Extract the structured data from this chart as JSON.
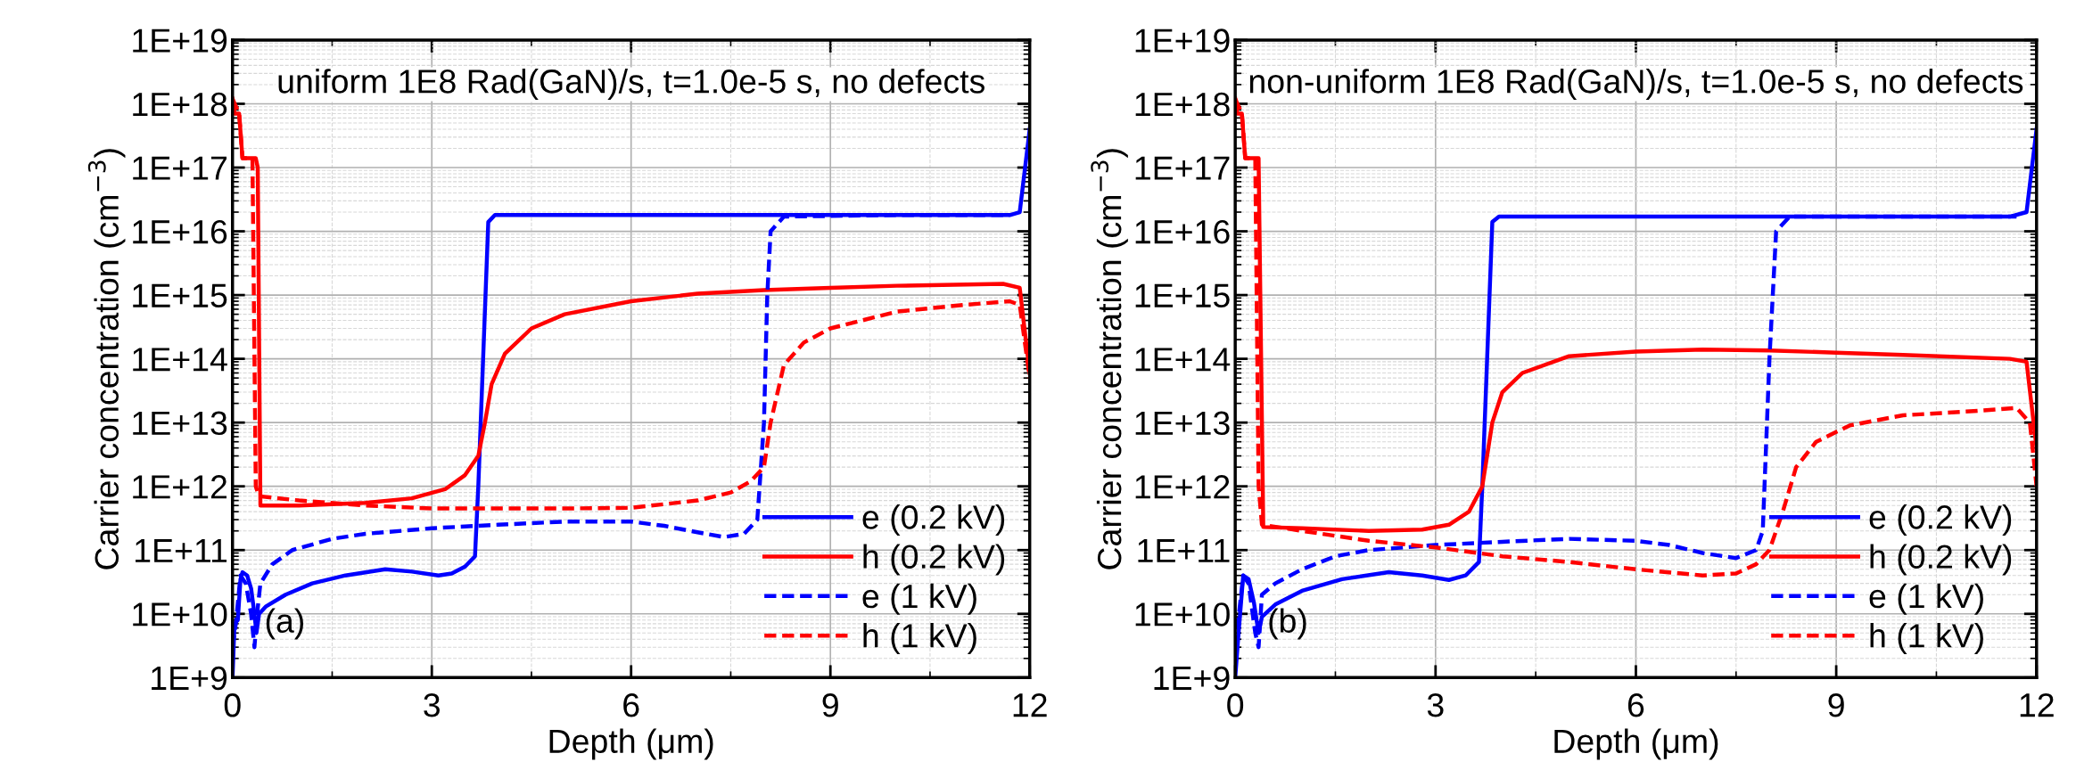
{
  "chart_data": [
    {
      "type": "line",
      "xlabel": "Depth (μm)",
      "ylabel": "Carrier concentration (cm$^{−3}$)",
      "log": "y",
      "grid": true,
      "legend": "bottom right",
      "xlim": [
        0,
        12
      ],
      "xticks": [
        0,
        3,
        6,
        9,
        12
      ],
      "ylim": [
        1000000000.0,
        1e+19
      ],
      "yticks": [
        {
          "value": 1000000000.0,
          "label": "1E+9"
        },
        {
          "value": 10000000000.0,
          "label": "1E+10"
        },
        {
          "value": 100000000000.0,
          "label": "1E+11"
        },
        {
          "value": 1000000000000.0,
          "label": "1E+12"
        },
        {
          "value": 10000000000000.0,
          "label": "1E+13"
        },
        {
          "value": 100000000000000.0,
          "label": "1E+14"
        },
        {
          "value": 1000000000000000.0,
          "label": "1E+15"
        },
        {
          "value": 1e+16,
          "label": "1E+16"
        },
        {
          "value": 1e+17,
          "label": "1E+17"
        },
        {
          "value": 1e+18,
          "label": "1E+18"
        },
        {
          "value": 1e+19,
          "label": "1E+19"
        }
      ],
      "annotations": [
        "uniform 1E8 Rad(GaN)/s, t=1.0e-5 s, no defects",
        "(a)"
      ],
      "series": [
        {
          "name": "e (0.2 kV)",
          "color": "#0000ff",
          "line_style": "solid",
          "x": [
            0,
            0.03,
            0.08,
            0.12,
            0.15,
            0.22,
            0.28,
            0.33,
            0.36,
            0.4,
            0.5,
            0.8,
            1.2,
            1.7,
            2.3,
            2.7,
            3.1,
            3.3,
            3.5,
            3.65,
            3.7,
            3.85,
            3.95,
            6,
            9,
            11.7,
            11.85,
            12
          ],
          "values": [
            1000000000.0,
            7000000000.0,
            8000000000.0,
            35000000000.0,
            45000000000.0,
            40000000000.0,
            25000000000.0,
            10000000000.0,
            5000000000.0,
            10000000000.0,
            13000000000.0,
            20000000000.0,
            30000000000.0,
            40000000000.0,
            50000000000.0,
            46000000000.0,
            40000000000.0,
            43000000000.0,
            55000000000.0,
            80000000000.0,
            1000000000000.0,
            1.4e+16,
            1.8e+16,
            1.8e+16,
            1.8e+16,
            1.8e+16,
            2e+16,
            4e+17
          ]
        },
        {
          "name": "h (0.2 kV)",
          "color": "#ff0000",
          "line_style": "solid",
          "x": [
            0,
            0.03,
            0.1,
            0.15,
            0.35,
            0.38,
            0.42,
            1,
            2,
            2.7,
            3.2,
            3.5,
            3.7,
            3.8,
            3.9,
            4.1,
            4.5,
            5,
            6,
            7,
            8,
            9,
            10,
            11.6,
            11.85,
            12
          ],
          "values": [
            1.2e+18,
            7e+17,
            7e+17,
            1.4e+17,
            1.4e+17,
            1e+17,
            500000000000.0,
            500000000000.0,
            550000000000.0,
            650000000000.0,
            900000000000.0,
            1500000000000.0,
            3000000000000.0,
            10000000000000.0,
            40000000000000.0,
            120000000000000.0,
            300000000000000.0,
            500000000000000.0,
            800000000000000.0,
            1050000000000000.0,
            1200000000000000.0,
            1300000000000000.0,
            1400000000000000.0,
            1500000000000000.0,
            1300000000000000.0,
            60000000000000.0
          ]
        },
        {
          "name": "e (1 kV)",
          "color": "#0000ff",
          "line_style": "dashed",
          "x": [
            0,
            0.05,
            0.12,
            0.2,
            0.28,
            0.33,
            0.37,
            0.42,
            0.6,
            0.9,
            1.5,
            2,
            3,
            4,
            5,
            6,
            6.5,
            7,
            7.4,
            7.7,
            7.9,
            8,
            8.05,
            8.1,
            8.3,
            10,
            11.7
          ],
          "values": [
            3000000000.0,
            7000000000.0,
            40000000000.0,
            30000000000.0,
            10000000000.0,
            3000000000.0,
            10000000000.0,
            30000000000.0,
            60000000000.0,
            100000000000.0,
            150000000000.0,
            180000000000.0,
            220000000000.0,
            250000000000.0,
            280000000000.0,
            280000000000.0,
            240000000000.0,
            190000000000.0,
            160000000000.0,
            180000000000.0,
            300000000000.0,
            10000000000000.0,
            1000000000000000.0,
            1e+16,
            1.7e+16,
            1.8e+16,
            1.8e+16
          ]
        },
        {
          "name": "h (1 kV)",
          "color": "#ff0000",
          "line_style": "dashed",
          "x": [
            0,
            0.1,
            0.15,
            0.3,
            0.35,
            0.4,
            1,
            2,
            3,
            5,
            6,
            7,
            7.5,
            7.8,
            8,
            8.1,
            8.3,
            8.6,
            9,
            10,
            11,
            11.7,
            11.85,
            12
          ],
          "values": [
            1.2e+18,
            7e+17,
            1.4e+17,
            1.4e+17,
            1000000000000.0,
            700000000000.0,
            600000000000.0,
            500000000000.0,
            450000000000.0,
            450000000000.0,
            460000000000.0,
            600000000000.0,
            800000000000.0,
            1200000000000.0,
            2000000000000.0,
            10000000000000.0,
            80000000000000.0,
            180000000000000.0,
            300000000000000.0,
            550000000000000.0,
            700000000000000.0,
            800000000000000.0,
            700000000000000.0,
            50000000000000.0
          ]
        }
      ]
    },
    {
      "type": "line",
      "xlabel": "Depth (μm)",
      "ylabel": "Carrier concentration (cm$^{−3}$)",
      "log": "y",
      "grid": true,
      "legend": "bottom right",
      "xlim": [
        0,
        12
      ],
      "xticks": [
        0,
        3,
        6,
        9,
        12
      ],
      "ylim": [
        1000000000.0,
        1e+19
      ],
      "yticks": [
        {
          "value": 1000000000.0,
          "label": "1E+9"
        },
        {
          "value": 10000000000.0,
          "label": "1E+10"
        },
        {
          "value": 100000000000.0,
          "label": "1E+11"
        },
        {
          "value": 1000000000000.0,
          "label": "1E+12"
        },
        {
          "value": 10000000000000.0,
          "label": "1E+13"
        },
        {
          "value": 100000000000000.0,
          "label": "1E+14"
        },
        {
          "value": 1000000000000000.0,
          "label": "1E+15"
        },
        {
          "value": 1e+16,
          "label": "1E+16"
        },
        {
          "value": 1e+17,
          "label": "1E+17"
        },
        {
          "value": 1e+18,
          "label": "1E+18"
        },
        {
          "value": 1e+19,
          "label": "1E+19"
        }
      ],
      "annotations": [
        "non-uniform 1E8 Rad(GaN)/s, t=1.0e-5 s, no defects",
        "(b)"
      ],
      "series": [
        {
          "name": "e (0.2 kV)",
          "color": "#0000ff",
          "line_style": "solid",
          "x": [
            0,
            0.05,
            0.12,
            0.2,
            0.28,
            0.35,
            0.4,
            0.6,
            1,
            1.6,
            2.3,
            2.8,
            3.2,
            3.45,
            3.65,
            3.7,
            3.85,
            3.95,
            11.6,
            11.85,
            12
          ],
          "values": [
            1000000000.0,
            5000000000.0,
            40000000000.0,
            35000000000.0,
            15000000000.0,
            5000000000.0,
            9000000000.0,
            14000000000.0,
            23000000000.0,
            35000000000.0,
            45000000000.0,
            40000000000.0,
            34000000000.0,
            40000000000.0,
            65000000000.0,
            1000000000000.0,
            1.4e+16,
            1.7e+16,
            1.7e+16,
            2e+16,
            4e+17
          ]
        },
        {
          "name": "h (0.2 kV)",
          "color": "#ff0000",
          "line_style": "solid",
          "x": [
            0,
            0.03,
            0.1,
            0.15,
            0.35,
            0.42,
            1,
            2,
            2.8,
            3.2,
            3.5,
            3.7,
            3.85,
            4,
            4.3,
            5,
            6,
            7,
            8,
            9,
            10,
            11.6,
            11.85,
            12
          ],
          "values": [
            1.2e+18,
            7e+17,
            7e+17,
            1.4e+17,
            1.4e+17,
            230000000000.0,
            220000000000.0,
            200000000000.0,
            210000000000.0,
            250000000000.0,
            400000000000.0,
            1000000000000.0,
            10000000000000.0,
            30000000000000.0,
            60000000000000.0,
            110000000000000.0,
            130000000000000.0,
            140000000000000.0,
            135000000000000.0,
            125000000000000.0,
            115000000000000.0,
            100000000000000.0,
            90000000000000.0,
            4000000000000.0
          ]
        },
        {
          "name": "e (1 kV)",
          "color": "#0000ff",
          "line_style": "dashed",
          "x": [
            0,
            0.12,
            0.2,
            0.3,
            0.35,
            0.4,
            0.6,
            1,
            1.5,
            2,
            3,
            4,
            5,
            6,
            6.5,
            7,
            7.5,
            7.8,
            7.9,
            8,
            8.05,
            8.1,
            8.3,
            11.7
          ],
          "values": [
            3000000000.0,
            40000000000.0,
            30000000000.0,
            5000000000.0,
            3000000000.0,
            20000000000.0,
            30000000000.0,
            50000000000.0,
            80000000000.0,
            100000000000.0,
            120000000000.0,
            135000000000.0,
            150000000000.0,
            140000000000.0,
            120000000000.0,
            90000000000.0,
            75000000000.0,
            100000000000.0,
            200000000000.0,
            100000000000000.0,
            1000000000000000.0,
            1e+16,
            1.7e+16,
            1.7e+16
          ]
        },
        {
          "name": "h (1 kV)",
          "color": "#ff0000",
          "line_style": "dashed",
          "x": [
            0,
            0.1,
            0.15,
            0.3,
            0.35,
            0.4,
            1,
            2,
            3,
            4,
            5,
            6,
            7,
            7.5,
            7.8,
            8,
            8.2,
            8.4,
            8.7,
            9.2,
            10,
            11,
            11.7,
            11.9,
            12
          ],
          "values": [
            1.2e+18,
            7e+17,
            1.4e+17,
            1.4e+17,
            1000000000000.0,
            250000000000.0,
            200000000000.0,
            140000000000.0,
            110000000000.0,
            80000000000.0,
            65000000000.0,
            50000000000.0,
            40000000000.0,
            43000000000.0,
            60000000000.0,
            100000000000.0,
            400000000000.0,
            2000000000000.0,
            5000000000000.0,
            9000000000000.0,
            13000000000000.0,
            15000000000000.0,
            17000000000000.0,
            10000000000000.0,
            1000000000000.0
          ]
        }
      ]
    }
  ]
}
